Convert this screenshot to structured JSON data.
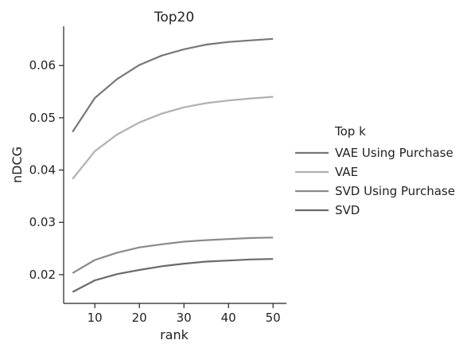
{
  "chart_data": {
    "type": "line",
    "title": "Top20",
    "xlabel": "rank",
    "ylabel": "nDCG",
    "xlim": [
      3,
      53
    ],
    "ylim": [
      0.0145,
      0.0675
    ],
    "xticks": [
      10,
      20,
      30,
      40,
      50
    ],
    "yticks": [
      0.02,
      0.03,
      0.04,
      0.05,
      0.06
    ],
    "x": [
      5,
      10,
      15,
      20,
      25,
      30,
      35,
      40,
      45,
      50
    ],
    "legend": {
      "title": "Top k",
      "position": "right"
    },
    "grid": false,
    "series": [
      {
        "name": "VAE Using Purchase",
        "color": "#777777",
        "values": [
          0.0473,
          0.0538,
          0.0574,
          0.0601,
          0.0619,
          0.0631,
          0.064,
          0.0645,
          0.0648,
          0.0651
        ]
      },
      {
        "name": "VAE",
        "color": "#b0b0b0",
        "values": [
          0.0383,
          0.0436,
          0.0468,
          0.0491,
          0.0508,
          0.052,
          0.0528,
          0.0533,
          0.0537,
          0.054
        ]
      },
      {
        "name": "SVD Using Purchase",
        "color": "#8a8a8a",
        "values": [
          0.0203,
          0.0228,
          0.0242,
          0.0252,
          0.0258,
          0.0263,
          0.0266,
          0.0268,
          0.027,
          0.0271
        ]
      },
      {
        "name": "SVD",
        "color": "#6a6a6a",
        "values": [
          0.0167,
          0.0189,
          0.0201,
          0.0209,
          0.0216,
          0.0221,
          0.0225,
          0.0227,
          0.0229,
          0.023
        ]
      }
    ]
  }
}
